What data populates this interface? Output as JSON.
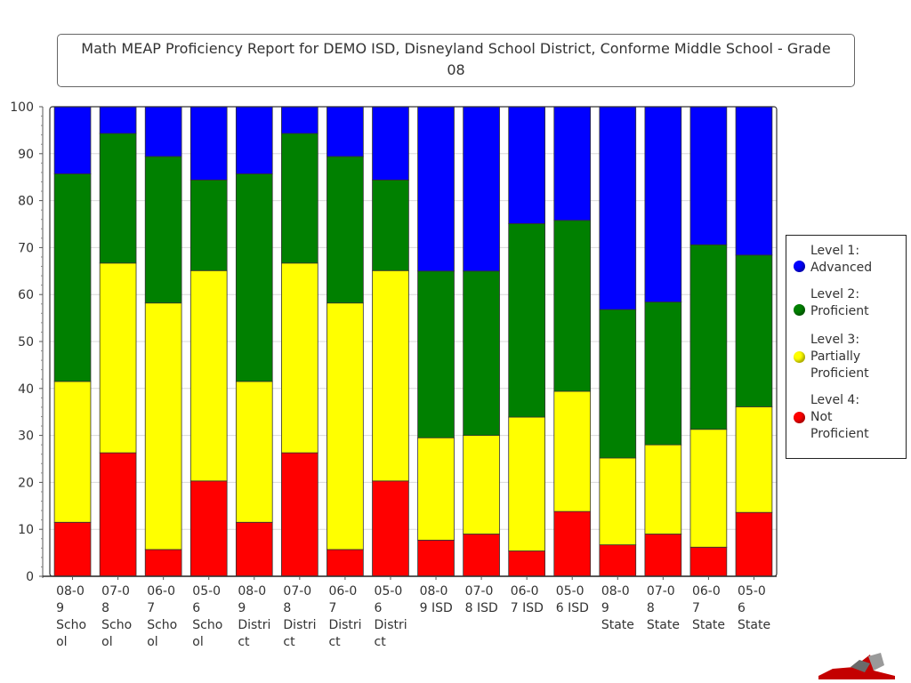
{
  "chart_data": {
    "type": "bar",
    "stacked": true,
    "title": "Math MEAP Proficiency Report for DEMO ISD, Disneyland School District, Conforme Middle School - Grade 08",
    "categories": [
      [
        "08-0",
        "9",
        "Scho",
        "ol"
      ],
      [
        "07-0",
        "8",
        "Scho",
        "ol"
      ],
      [
        "06-0",
        "7",
        "Scho",
        "ol"
      ],
      [
        "05-0",
        "6",
        "Scho",
        "ol"
      ],
      [
        "08-0",
        "9",
        "Distri",
        "ct"
      ],
      [
        "07-0",
        "8",
        "Distri",
        "ct"
      ],
      [
        "06-0",
        "7",
        "Distri",
        "ct"
      ],
      [
        "05-0",
        "6",
        "Distri",
        "ct"
      ],
      [
        "08-0",
        "9 ISD"
      ],
      [
        "07-0",
        "8 ISD"
      ],
      [
        "06-0",
        "7 ISD"
      ],
      [
        "05-0",
        "6 ISD"
      ],
      [
        "08-0",
        "9",
        "State"
      ],
      [
        "07-0",
        "8",
        "State"
      ],
      [
        "06-0",
        "7",
        "State"
      ],
      [
        "05-0",
        "6",
        "State"
      ]
    ],
    "series": [
      {
        "name": "Level 4: Not Proficient",
        "color": "#ff0000",
        "values": [
          11.5,
          26.3,
          5.7,
          20.3,
          11.5,
          26.3,
          5.7,
          20.3,
          7.7,
          9.0,
          5.4,
          13.8,
          6.7,
          9.0,
          6.2,
          13.6
        ]
      },
      {
        "name": "Level 3: Partially Proficient",
        "color": "#ffff00",
        "values": [
          30.0,
          40.4,
          52.5,
          44.8,
          30.0,
          40.4,
          52.5,
          44.8,
          21.8,
          21.0,
          28.5,
          25.6,
          18.5,
          19.0,
          25.1,
          22.5
        ]
      },
      {
        "name": "Level 2: Proficient",
        "color": "#008000",
        "values": [
          44.2,
          27.6,
          31.2,
          19.3,
          44.2,
          27.6,
          31.2,
          19.3,
          35.5,
          35.0,
          41.2,
          36.4,
          31.6,
          30.4,
          39.3,
          32.3
        ]
      },
      {
        "name": "Level 1: Advanced",
        "color": "#0000ff",
        "values": [
          14.3,
          5.7,
          10.6,
          15.6,
          14.3,
          5.7,
          10.6,
          15.6,
          35.0,
          35.0,
          24.9,
          24.2,
          43.2,
          41.6,
          29.4,
          31.6
        ]
      }
    ],
    "yticks": [
      "0",
      "10",
      "20",
      "30",
      "40",
      "50",
      "60",
      "70",
      "80",
      "90",
      "100"
    ],
    "ylim": [
      0,
      100
    ],
    "grid": true,
    "legend_position": "right"
  },
  "legend": {
    "items": [
      {
        "label": "Level 1:\nAdvanced",
        "color": "#0000ff"
      },
      {
        "label": "Level 2:\nProficient",
        "color": "#008000"
      },
      {
        "label": "Level 3:\nPartially\nProficient",
        "color": "#ffff00"
      },
      {
        "label": "Level 4:\nNot\nProficient",
        "color": "#ff0000"
      }
    ]
  }
}
